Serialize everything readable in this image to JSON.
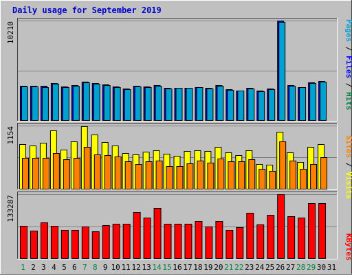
{
  "title": "Daily usage for September 2019",
  "colors": {
    "background": "#c0c0c0",
    "panel": "#c0c0c0",
    "grid": "#808080",
    "title": "#0000cc",
    "weekday_label": "#000000",
    "weekend_label": "#008040",
    "pages": "#00a0d0",
    "files": "#0000ff",
    "hits": "#008040",
    "visits": "#ffff00",
    "sites": "#ff8000",
    "kbytes": "#ff0000"
  },
  "right_labels": {
    "pages_files_hits": [
      {
        "text": "Pages",
        "color": "#00a0d0"
      },
      {
        "text": " / ",
        "color": "#000000"
      },
      {
        "text": "Files",
        "color": "#0000ff"
      },
      {
        "text": " / ",
        "color": "#000000"
      },
      {
        "text": "Hits",
        "color": "#008040"
      }
    ],
    "sites_visits": [
      {
        "text": "Sites",
        "color": "#ff8000"
      },
      {
        "text": " / ",
        "color": "#000000"
      },
      {
        "text": "Visits",
        "color": "#ffff00"
      }
    ],
    "kbytes": [
      {
        "text": "KBytes",
        "color": "#ff0000"
      }
    ]
  },
  "chart_data": {
    "type": "bar",
    "x": [
      "1",
      "2",
      "3",
      "4",
      "5",
      "6",
      "7",
      "8",
      "9",
      "10",
      "11",
      "12",
      "13",
      "14",
      "15",
      "16",
      "17",
      "18",
      "19",
      "20",
      "21",
      "22",
      "23",
      "24",
      "25",
      "26",
      "27",
      "28",
      "29",
      "30",
      "31"
    ],
    "weekend_days": [
      "1",
      "7",
      "8",
      "14",
      "15",
      "21",
      "22",
      "28",
      "29"
    ],
    "panels": [
      {
        "name": "pages_files_hits",
        "ytick_label": "10210",
        "ymax": 10210,
        "series": [
          {
            "name": "Hits",
            "color": "#008040",
            "values": [
              0,
              0,
              0,
              0,
              0,
              0,
              0,
              0,
              0,
              0,
              0,
              0,
              0,
              0,
              0,
              0,
              0,
              0,
              0,
              0,
              0,
              0,
              0,
              0,
              0,
              0,
              0,
              0,
              0,
              0,
              0
            ]
          },
          {
            "name": "Files",
            "color": "#0000ff",
            "values": [
              3520,
              3520,
              3520,
              3800,
              3420,
              3560,
              3920,
              3800,
              3670,
              3430,
              3230,
              3490,
              3420,
              3570,
              3300,
              3340,
              3330,
              3410,
              3320,
              3560,
              3140,
              3050,
              3300,
              3040,
              3250,
              10210,
              3600,
              3410,
              3880,
              4000,
              0
            ]
          },
          {
            "name": "Pages",
            "color": "#00a0d0",
            "values": [
              3450,
              3450,
              3410,
              3750,
              3350,
              3500,
              3860,
              3740,
              3610,
              3380,
              3170,
              3450,
              3350,
              3520,
              3250,
              3280,
              3280,
              3350,
              3270,
              3500,
              3080,
              3000,
              3240,
              2980,
              3200,
              10100,
              3540,
              3350,
              3820,
              3940,
              0
            ]
          }
        ]
      },
      {
        "name": "sites_visits",
        "ytick_label": "1154",
        "ymax": 1154,
        "series": [
          {
            "name": "Visits",
            "color": "#ffff00",
            "values": [
              820,
              790,
              840,
              1060,
              720,
              870,
              1140,
              990,
              850,
              790,
              650,
              630,
              680,
              700,
              640,
              600,
              690,
              700,
              690,
              770,
              670,
              620,
              700,
              450,
              440,
              1040,
              670,
              490,
              760,
              810,
              0
            ]
          },
          {
            "name": "Sites",
            "color": "#ff8000",
            "values": [
              570,
              570,
              570,
              650,
              540,
              570,
              770,
              630,
              620,
              590,
              500,
              450,
              500,
              520,
              420,
              420,
              470,
              520,
              480,
              550,
              500,
              500,
              540,
              360,
              320,
              870,
              520,
              370,
              450,
              580,
              0
            ]
          }
        ]
      },
      {
        "name": "kbytes",
        "ytick_label": "133287",
        "ymax": 133287,
        "series": [
          {
            "name": "KBytes",
            "color": "#ff0000",
            "values": [
              68000,
              58000,
              74000,
              68000,
              59000,
              59000,
              66000,
              56000,
              69000,
              71000,
              72000,
              96000,
              85000,
              104000,
              71000,
              71000,
              71000,
              77000,
              66000,
              77000,
              59000,
              65000,
              95000,
              70000,
              91000,
              133287,
              87000,
              85000,
              114000,
              115000,
              0
            ]
          }
        ]
      }
    ]
  }
}
